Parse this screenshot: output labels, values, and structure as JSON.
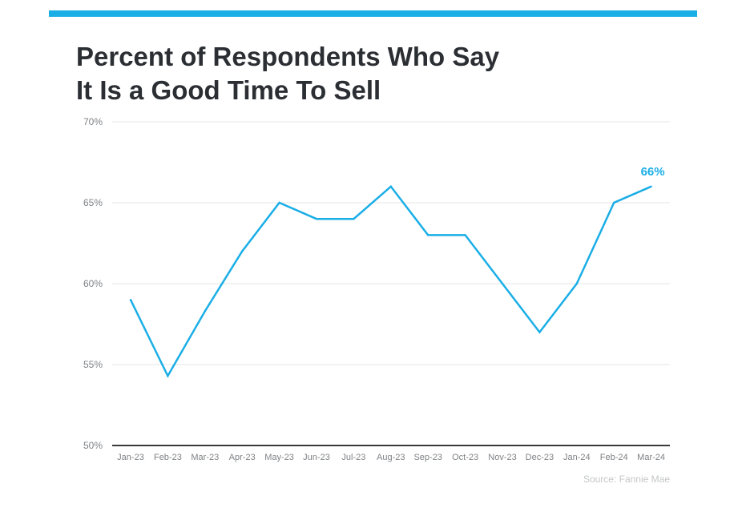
{
  "title_lines": [
    "Percent of Respondents Who Say",
    "It Is a Good Time To Sell"
  ],
  "source": "Source: Fannie Mae",
  "colors": {
    "accent": "#1aaee6",
    "title": "#2b2f33",
    "axis_text": "#7f8285",
    "grid": "#e6e6e6",
    "baseline": "#3a3a3a",
    "source": "#c4c6c8"
  },
  "chart_data": {
    "type": "line",
    "categories": [
      "Jan-23",
      "Feb-23",
      "Mar-23",
      "Apr-23",
      "May-23",
      "Jun-23",
      "Jul-23",
      "Aug-23",
      "Sep-23",
      "Oct-23",
      "Nov-23",
      "Dec-23",
      "Jan-24",
      "Feb-24",
      "Mar-24"
    ],
    "series": [
      {
        "values": [
          59,
          54.3,
          58.3,
          62,
          65,
          64,
          64,
          66,
          63,
          63,
          60,
          57,
          60,
          65,
          66
        ]
      }
    ],
    "ylim": [
      50,
      70
    ],
    "yticks": [
      "50%",
      "55%",
      "60%",
      "65%",
      "70%"
    ],
    "ytick_values": [
      50,
      55,
      60,
      65,
      70
    ],
    "annotation": {
      "text": "66%",
      "index": 14
    },
    "grid": true
  }
}
